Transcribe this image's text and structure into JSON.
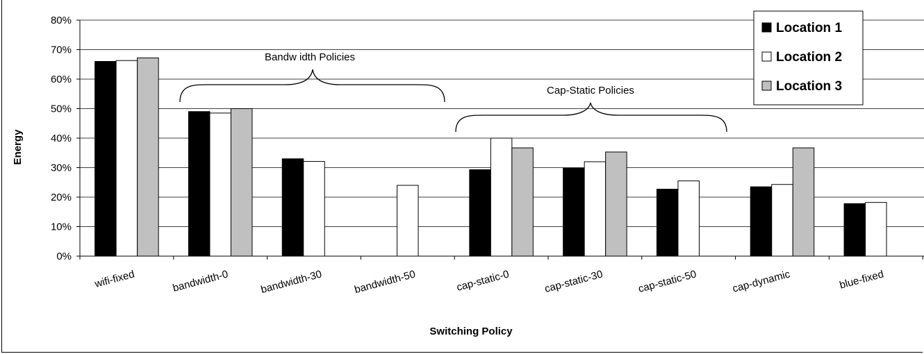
{
  "chart_data": {
    "type": "bar",
    "categories": [
      "wifi-fixed",
      "bandwidth-0",
      "bandwidth-30",
      "bandwidth-50",
      "cap-static-0",
      "cap-static-30",
      "cap-static-50",
      "cap-dynamic",
      "blue-fixed"
    ],
    "series": [
      {
        "name": "Location 1",
        "color": "#000000",
        "values": [
          66,
          49,
          33,
          null,
          29.3,
          29.8,
          22.7,
          23.5,
          17.8
        ]
      },
      {
        "name": "Location 2",
        "color": "#ffffff",
        "values": [
          66.3,
          48.5,
          32.1,
          24,
          40,
          32,
          25.5,
          24.3,
          18.2
        ]
      },
      {
        "name": "Location 3",
        "color": "#c0c0c0",
        "values": [
          67.2,
          50,
          null,
          null,
          36.7,
          35.3,
          null,
          36.7,
          null
        ]
      }
    ],
    "ylabel": "Energy",
    "xlabel": "Switching Policy",
    "ylim": [
      0,
      80
    ],
    "yticks": [
      "0%",
      "10%",
      "20%",
      "30%",
      "40%",
      "50%",
      "60%",
      "70%",
      "80%"
    ],
    "grid": true,
    "legend_position": "top-right",
    "annotations": [
      {
        "text": "Bandw idth Policies",
        "spans": [
          "bandwidth-0",
          "bandwidth-50"
        ]
      },
      {
        "text": "Cap-Static Policies",
        "spans": [
          "cap-static-0",
          "cap-static-50"
        ]
      }
    ]
  }
}
